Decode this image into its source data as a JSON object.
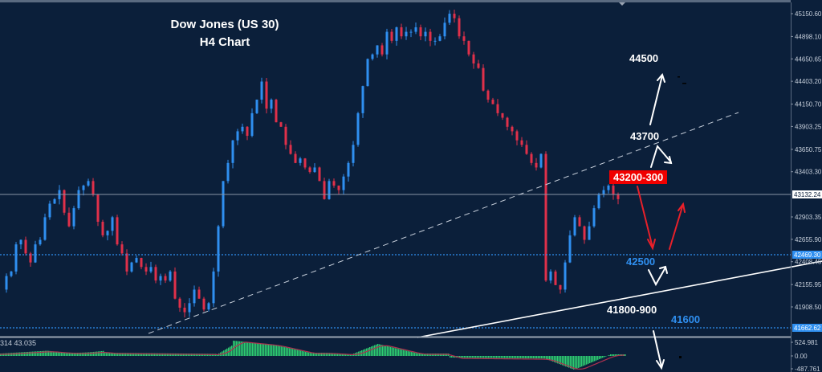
{
  "title": {
    "line1": "Dow Jones (US 30)",
    "line2": "H4 Chart"
  },
  "annotations": {
    "target_high": "44500",
    "resistance_1": "43700",
    "current_zone": "43200-300",
    "support_1": "42500",
    "support_2": "41800-900",
    "support_3": "41600"
  },
  "price_axis": {
    "ticks": [
      "45150.60",
      "44898.10",
      "44650.65",
      "44403.20",
      "44150.70",
      "43903.25",
      "43650.75",
      "43403.30",
      "42903.35",
      "42655.90",
      "42408.45",
      "42155.95",
      "41908.50"
    ],
    "current_price": "43132.24",
    "level_blue_1": "42469.30",
    "level_blue_2": "41662.62"
  },
  "indicator": {
    "label": "314 43.035",
    "ticks": [
      "524.981",
      "0.00",
      "-487.761"
    ]
  },
  "colors": {
    "background": "#0b1f3a",
    "bull": "#2f8ff0",
    "bear": "#e0304a",
    "histogram": "#2ecc71",
    "signal": "#b03050",
    "accent_red": "#f00000",
    "accent_blue": "#2f8ff0"
  },
  "chart_data": {
    "type": "candlestick",
    "title": "Dow Jones (US 30) H4 Chart",
    "ylim": [
      41600,
      45250
    ],
    "y_ticks": [
      45150.6,
      44898.1,
      44650.65,
      44403.2,
      44150.7,
      43903.25,
      43650.75,
      43403.3,
      42903.35,
      42655.9,
      42408.45,
      42155.95,
      41908.5
    ],
    "current_price": 43132.24,
    "horizontal_levels": [
      43132.24,
      42469.3,
      41662.62
    ],
    "close_path": [
      42100,
      42250,
      42300,
      42600,
      42650,
      42500,
      42400,
      42600,
      42650,
      42900,
      43050,
      43100,
      43200,
      42950,
      42800,
      43000,
      43200,
      43250,
      43300,
      43150,
      42850,
      42700,
      42750,
      42900,
      42600,
      42500,
      42300,
      42400,
      42450,
      42350,
      42300,
      42350,
      42200,
      42250,
      42200,
      42300,
      42000,
      41900,
      41850,
      41950,
      42100,
      42000,
      41880,
      41950,
      42300,
      42800,
      43300,
      43500,
      43750,
      43850,
      43900,
      43800,
      44050,
      44200,
      44400,
      44100,
      44200,
      43950,
      43900,
      43700,
      43600,
      43500,
      43550,
      43450,
      43400,
      43450,
      43300,
      43100,
      43300,
      43250,
      43200,
      43350,
      43500,
      43700,
      44050,
      44350,
      44650,
      44700,
      44800,
      44700,
      44950,
      44850,
      45000,
      44900,
      44950,
      44950,
      45000,
      44900,
      44950,
      44850,
      44850,
      44900,
      45050,
      45150,
      45100,
      44900,
      44850,
      44700,
      44600,
      44550,
      44300,
      44200,
      44150,
      44050,
      44000,
      43900,
      43850,
      43750,
      43700,
      43600,
      43500,
      43450,
      43600,
      42200,
      42300,
      42150,
      42100,
      42400,
      42700,
      42900,
      42800,
      42650,
      42800,
      43000,
      43150,
      43200,
      43250,
      43150,
      43100
    ],
    "trendlines": [
      {
        "style": "dashed",
        "from": [
          185,
          415
        ],
        "to": [
          920,
          140
        ]
      },
      {
        "style": "solid",
        "from": [
          520,
          420
        ],
        "to": [
          1024,
          325
        ]
      }
    ],
    "indicator": {
      "type": "histogram+signal",
      "ticks": [
        524.981,
        0.0,
        -487.761
      ]
    }
  }
}
